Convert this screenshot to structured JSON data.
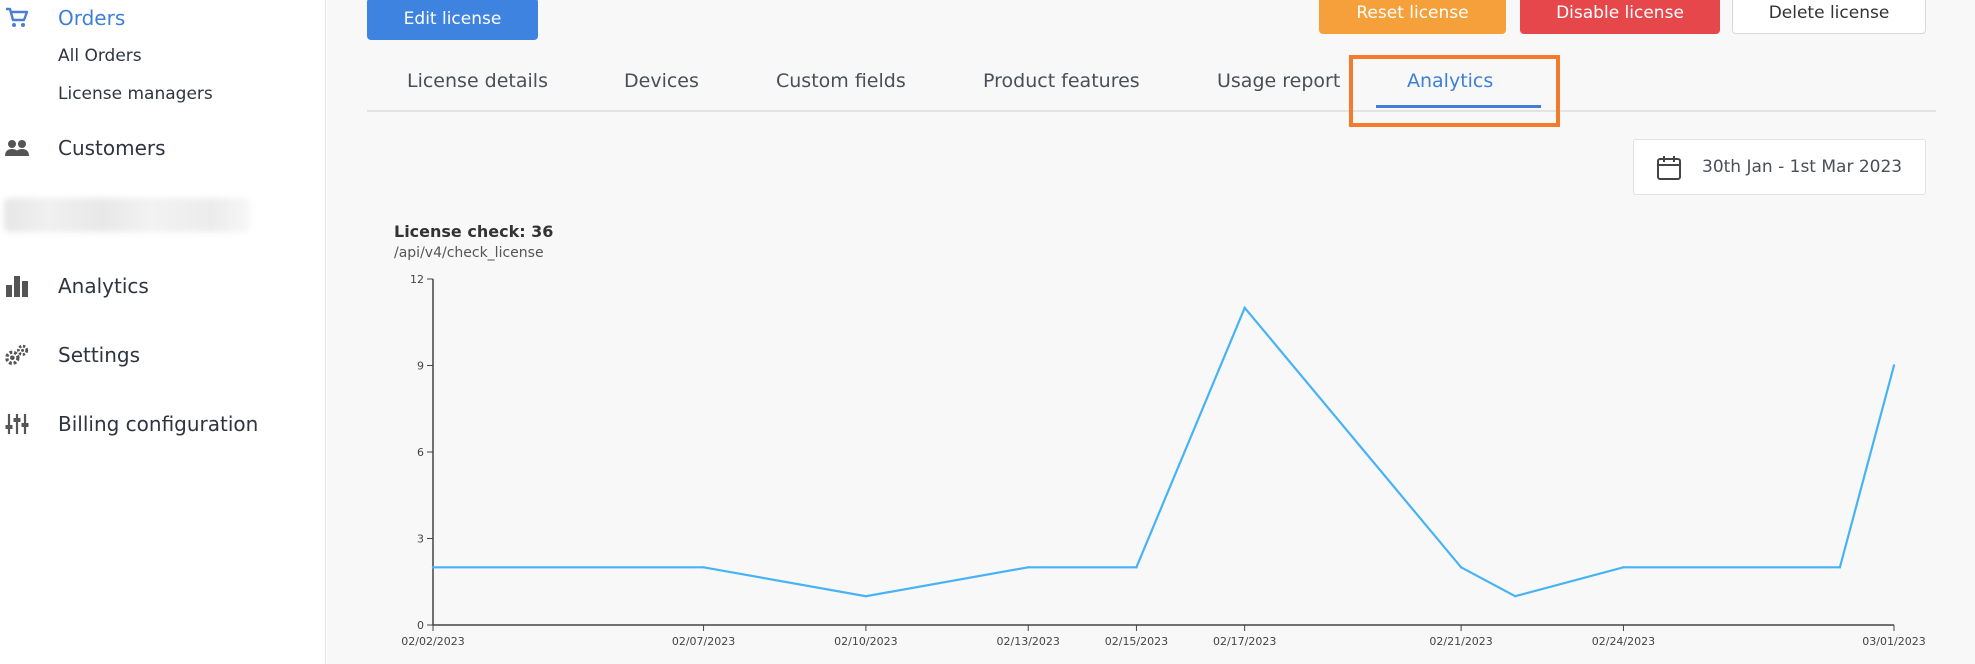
{
  "sidebar": {
    "orders_label": "Orders",
    "sub_items": [
      "All Orders",
      "License managers"
    ],
    "customers_label": "Customers",
    "analytics_label": "Analytics",
    "settings_label": "Settings",
    "billing_label": "Billing configuration"
  },
  "actions": {
    "edit": "Edit license",
    "reset": "Reset license",
    "disable": "Disable license",
    "delete": "Delete license"
  },
  "tabs": [
    "License details",
    "Devices",
    "Custom fields",
    "Product features",
    "Usage report",
    "Analytics"
  ],
  "active_tab": "Analytics",
  "date_range": "30th Jan - 1st Mar 2023",
  "chart": {
    "title": "License check: 36",
    "subtitle": "/api/v4/check_license"
  },
  "colors": {
    "accent": "#3d7fd9",
    "reset": "#f6a03c",
    "disable": "#e5474b",
    "line": "#47b3f5",
    "highlight": "#f47a2c"
  },
  "chart_data": {
    "type": "line",
    "title": "License check: 36",
    "subtitle": "/api/v4/check_license",
    "ylim": [
      0,
      12
    ],
    "yticks": [
      0,
      3,
      6,
      9,
      12
    ],
    "x_ticks": [
      "02/02/2023",
      "02/07/2023",
      "02/10/2023",
      "02/13/2023",
      "02/15/2023",
      "02/17/2023",
      "02/21/2023",
      "02/24/2023",
      "03/01/2023"
    ],
    "x": [
      "2023-02-02",
      "2023-02-07",
      "2023-02-10",
      "2023-02-13",
      "2023-02-15",
      "2023-02-17",
      "2023-02-21",
      "2023-02-22",
      "2023-02-24",
      "2023-02-28",
      "2023-03-01"
    ],
    "values": [
      2,
      2,
      1,
      2,
      2,
      11,
      2,
      1,
      2,
      2,
      9
    ],
    "grid": false,
    "legend": "none"
  }
}
